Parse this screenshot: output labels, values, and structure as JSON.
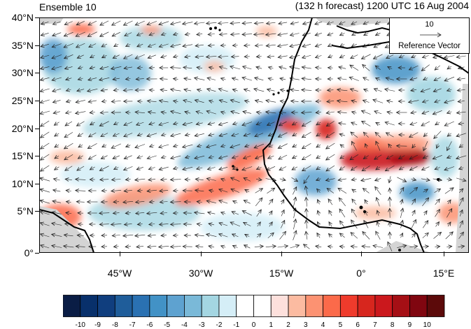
{
  "map": {
    "title_left": "Ensemble 10",
    "title_right": "(132 h forecast) 1200 UTC 16 Aug 2004",
    "lat_labels": [
      "40°N",
      "35°N",
      "30°N",
      "25°N",
      "20°N",
      "15°N",
      "10°N",
      "5°N",
      "0°"
    ],
    "lon_labels": [
      "45°W",
      "30°W",
      "15°W",
      "0°",
      "15°E"
    ],
    "reference_vector": {
      "magnitude": "10",
      "label": "Reference Vector"
    },
    "colorbar": {
      "labels": [
        "-10",
        "-9",
        "-8",
        "-7",
        "-6",
        "-5",
        "-4",
        "-3",
        "-2",
        "-1",
        "0",
        "1",
        "2",
        "3",
        "4",
        "5",
        "6",
        "7",
        "8",
        "9",
        "10"
      ],
      "colors": [
        "#0a1d45",
        "#08306b",
        "#103e7e",
        "#1f5d9a",
        "#2a71b2",
        "#4292c6",
        "#5ea2d0",
        "#7ab9d8",
        "#a4d6e2",
        "#d5eef7",
        "#ffffff",
        "#ffffff",
        "#fde0dc",
        "#fcbba1",
        "#fc9272",
        "#fb6a4a",
        "#ef3b2c",
        "#d7261e",
        "#cb181d",
        "#a50f15",
        "#800610",
        "#5c0a0a"
      ]
    },
    "colors": {
      "land_line": "#000000",
      "missing": "#d4d4d4",
      "arrow": "#222222"
    }
  }
}
